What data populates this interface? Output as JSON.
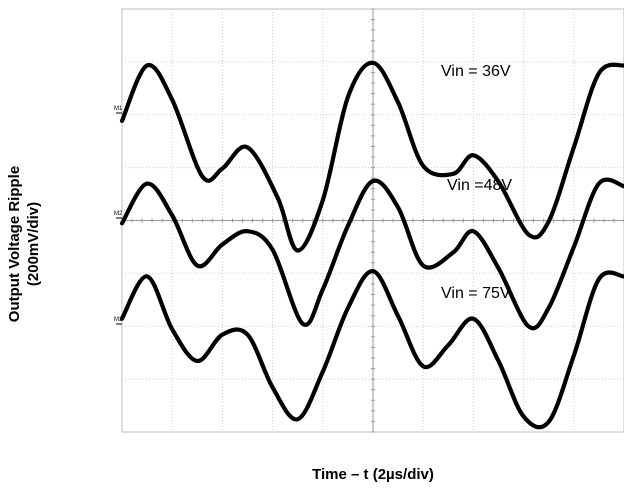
{
  "chart_data": {
    "type": "line",
    "title": "",
    "xlabel": "Time – t (2µs/div)",
    "ylabel_lines": [
      "Output Voltage Ripple",
      "(200mV/div)"
    ],
    "x_divisions": 10,
    "y_divisions": 8,
    "xlim_us": [
      0,
      20
    ],
    "grid": true,
    "series": [
      {
        "name": "Vin = 36V",
        "marker": "M1",
        "annotation": "Vin = 36V",
        "x_us": [
          0.0,
          1.0,
          2.0,
          3.2,
          4.0,
          5.0,
          6.2,
          7.0,
          8.0,
          9.0,
          10.0,
          11.0,
          12.0,
          13.2,
          14.0,
          15.0,
          16.2,
          17.0,
          18.0,
          19.0,
          20.0
        ],
        "y_mv": [
          -30,
          180,
          50,
          -240,
          -210,
          -130,
          -320,
          -520,
          -330,
          60,
          190,
          40,
          -200,
          -230,
          -160,
          -260,
          -460,
          -410,
          -130,
          150,
          180
        ]
      },
      {
        "name": "Vin =48V",
        "marker": "M2",
        "annotation": "Vin =48V",
        "x_us": [
          0.0,
          1.0,
          2.0,
          3.0,
          4.0,
          5.0,
          6.0,
          7.2,
          8.0,
          9.0,
          10.0,
          11.0,
          12.0,
          13.2,
          14.0,
          15.0,
          16.2,
          17.0,
          18.0,
          19.0,
          20.0
        ],
        "y_mv": [
          -20,
          130,
          10,
          -180,
          -100,
          -50,
          -120,
          -400,
          -270,
          -30,
          140,
          40,
          -180,
          -130,
          -50,
          -190,
          -410,
          -340,
          -110,
          130,
          120
        ]
      },
      {
        "name": "Vin = 75V",
        "marker": "M3",
        "annotation": "Vin = 75V",
        "x_us": [
          0.0,
          1.0,
          2.0,
          3.0,
          4.0,
          5.0,
          6.0,
          7.0,
          8.0,
          9.0,
          10.0,
          11.0,
          12.0,
          13.0,
          14.0,
          15.0,
          16.0,
          17.0,
          18.0,
          19.0,
          20.0
        ],
        "y_mv": [
          20,
          180,
          -20,
          -140,
          -40,
          -40,
          -240,
          -360,
          -180,
          60,
          200,
          30,
          -160,
          -80,
          20,
          -140,
          -350,
          -370,
          -120,
          170,
          180
        ]
      }
    ]
  }
}
